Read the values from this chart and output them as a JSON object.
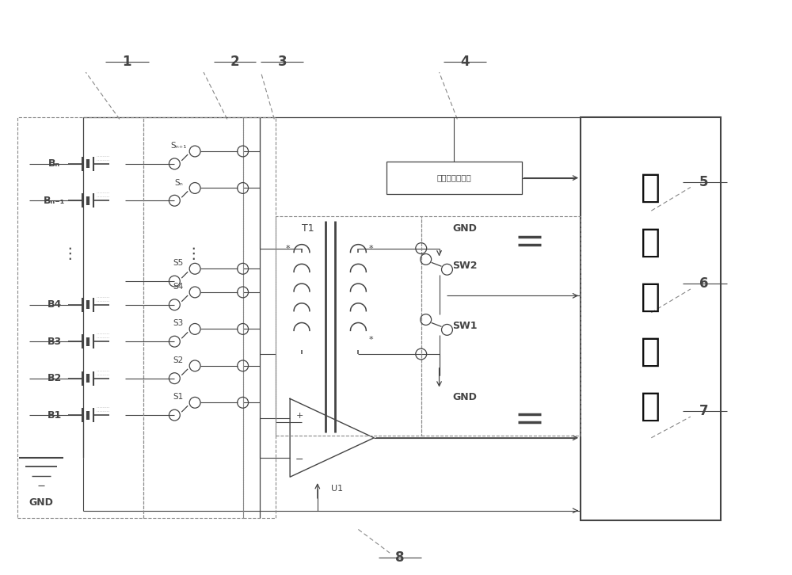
{
  "bg": "#ffffff",
  "lc": "#444444",
  "gc": "#888888",
  "fw": 10.0,
  "fh": 7.26,
  "dpi": 100,
  "bat_labels": [
    "Bₙ",
    "Bₙ₋₁",
    "B4",
    "B3",
    "B2",
    "B1"
  ],
  "bat_y": [
    2.05,
    2.52,
    3.85,
    4.32,
    4.79,
    5.26
  ],
  "sw_labels": [
    "Sₙ₊₁",
    "Sₙ",
    "S5",
    "S4",
    "S3",
    "S2",
    "S1"
  ],
  "sw_y": [
    2.05,
    2.52,
    3.55,
    3.85,
    4.32,
    4.79,
    5.26
  ],
  "ctrl_chars": [
    "均",
    "衡",
    "控",
    "制",
    "器"
  ],
  "samp_text": "电池组电压采样",
  "ref_labels": [
    "1",
    "2",
    "3",
    "4",
    "5",
    "6",
    "7",
    "8"
  ]
}
